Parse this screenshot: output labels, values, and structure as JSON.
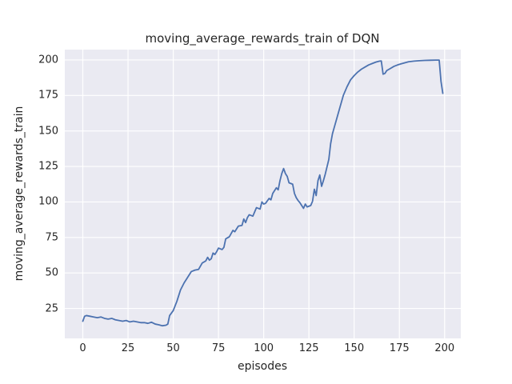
{
  "figure": {
    "title": "moving_average_rewards_train of DQN",
    "xlabel": "episodes",
    "ylabel": "moving_average_rewards_train"
  },
  "chart_data": {
    "type": "line",
    "title": "moving_average_rewards_train of DQN",
    "xlabel": "episodes",
    "ylabel": "moving_average_rewards_train",
    "x_ticks": [
      0,
      25,
      50,
      75,
      100,
      125,
      150,
      175,
      200
    ],
    "y_ticks": [
      25,
      50,
      75,
      100,
      125,
      150,
      175,
      200
    ],
    "xlim": [
      -9.95,
      208.95
    ],
    "ylim": [
      3.9,
      207.3
    ],
    "grid": true,
    "legend_position": "none",
    "colors": {
      "line": "#4c72b0",
      "axes_background": "#eaeaf2",
      "grid": "#ffffff",
      "text": "#262626",
      "figure_background": "#ffffff"
    },
    "series": [
      {
        "name": "moving_average_rewards_train",
        "x": [
          0,
          1,
          2,
          4,
          6,
          8,
          10,
          12,
          14,
          16,
          18,
          20,
          22,
          24,
          26,
          28,
          30,
          32,
          34,
          36,
          38,
          40,
          42,
          44,
          46,
          47,
          48,
          50,
          52,
          54,
          56,
          58,
          60,
          62,
          64,
          66,
          68,
          69,
          70,
          71,
          72,
          73,
          74,
          75,
          77,
          78,
          79,
          81,
          83,
          84,
          85,
          86,
          88,
          89,
          90,
          91,
          92,
          94,
          95,
          96,
          98,
          99,
          100,
          101,
          103,
          104,
          105,
          106,
          107,
          108,
          109,
          110,
          111,
          112,
          113,
          114,
          116,
          117,
          118,
          119,
          120,
          121,
          122,
          123,
          124,
          125,
          126,
          127,
          128,
          129,
          130,
          131,
          132,
          133,
          134,
          136,
          137,
          138,
          140,
          142,
          144,
          146,
          148,
          150,
          152,
          154,
          156,
          158,
          160,
          162,
          164,
          165,
          166,
          167,
          168,
          170,
          172,
          174,
          176,
          178,
          180,
          183,
          186,
          189,
          192,
          195,
          197,
          198,
          199
        ],
        "y": [
          16,
          19.5,
          20,
          19.5,
          19,
          18.5,
          19,
          18,
          17.5,
          18,
          17,
          16.5,
          16,
          16.5,
          15.5,
          16,
          15.5,
          15,
          15,
          14.5,
          15.3,
          14,
          13.5,
          12.8,
          13.2,
          14,
          20,
          23.5,
          30,
          38,
          43,
          47,
          51,
          52,
          52.5,
          57,
          58.5,
          61,
          59,
          60,
          64,
          63,
          65,
          67.5,
          66.5,
          68,
          74,
          75.5,
          80,
          79,
          81,
          83,
          83.5,
          88,
          85.5,
          89,
          91,
          90,
          93,
          96,
          95,
          100,
          98.5,
          99,
          102.5,
          101.5,
          106,
          108,
          110,
          108.5,
          115,
          120,
          123.5,
          120,
          118,
          113.5,
          112.5,
          106,
          103,
          101,
          99.5,
          97.5,
          95.5,
          98.5,
          96.5,
          97,
          97.5,
          100.5,
          109,
          104.5,
          115,
          119,
          111,
          115,
          119.5,
          130,
          141,
          148,
          157,
          166,
          175,
          181,
          186,
          189,
          191.5,
          193.5,
          195,
          196.5,
          197.5,
          198.5,
          199.2,
          199.3,
          190,
          190.5,
          192.5,
          194,
          195.5,
          196.5,
          197.3,
          198,
          198.7,
          199.2,
          199.5,
          199.7,
          199.8,
          199.9,
          199.9,
          185,
          176.5
        ]
      }
    ]
  }
}
